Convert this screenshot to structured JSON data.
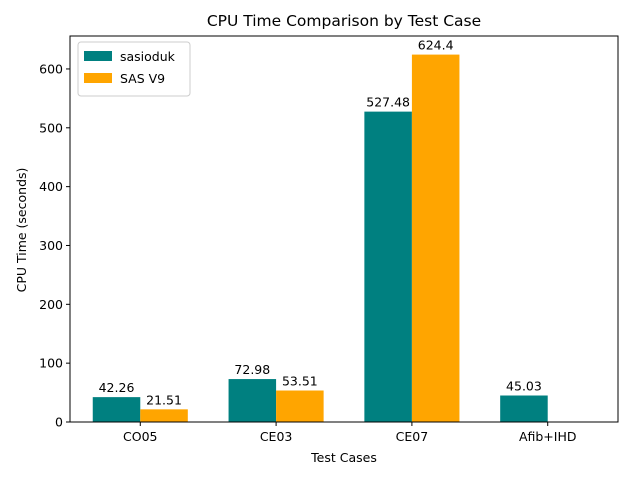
{
  "chart_data": {
    "type": "bar",
    "title": "CPU Time Comparison by Test Case",
    "xlabel": "Test Cases",
    "ylabel": "CPU Time (seconds)",
    "categories": [
      "CO05",
      "CE03",
      "CE07",
      "Afib+IHD"
    ],
    "ylim": [
      0,
      656
    ],
    "yticks": [
      0,
      100,
      200,
      300,
      400,
      500,
      600
    ],
    "grid": false,
    "legend_position": "upper-left",
    "series": [
      {
        "name": "sasioduk",
        "color": "#008080",
        "values": [
          42.26,
          72.98,
          527.48,
          45.03
        ],
        "labels": [
          "42.26",
          "72.98",
          "527.48",
          "45.03"
        ]
      },
      {
        "name": "SAS V9",
        "color": "#FFA500",
        "values": [
          21.51,
          53.51,
          624.4,
          null
        ],
        "labels": [
          "21.51",
          "53.51",
          "624.4",
          null
        ]
      }
    ]
  }
}
